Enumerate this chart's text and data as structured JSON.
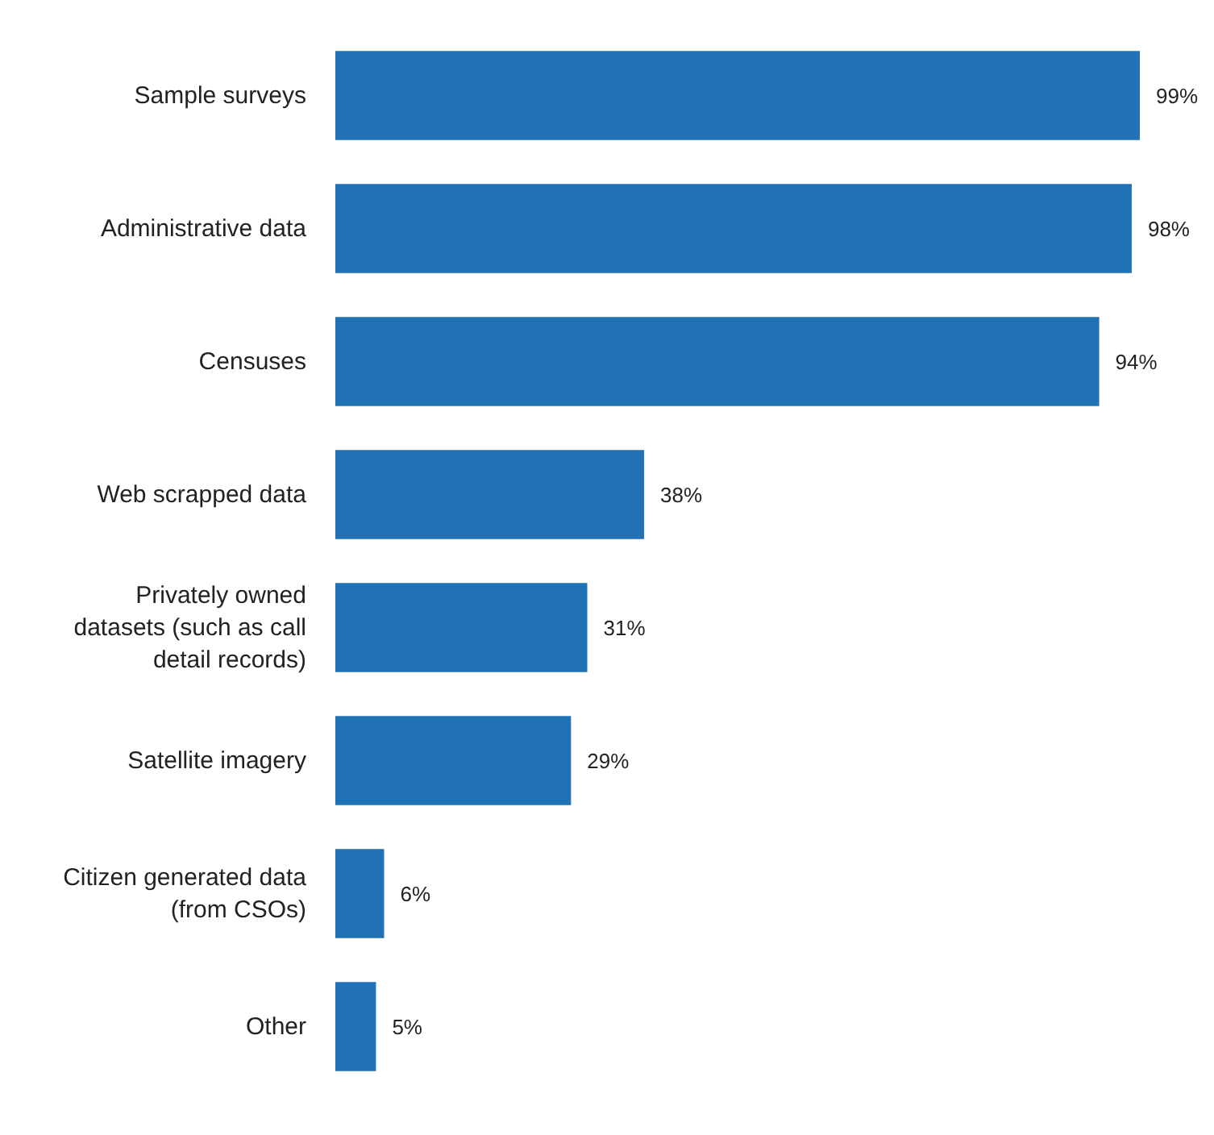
{
  "chart_data": {
    "type": "bar",
    "orientation": "horizontal",
    "categories": [
      "Sample surveys",
      "Administrative data",
      "Censuses",
      "Web scrapped data",
      "Privately owned\ndatasets (such as call\ndetail records)",
      "Satellite imagery",
      "Citizen generated data\n(from CSOs)",
      "Other"
    ],
    "values": [
      99,
      98,
      94,
      38,
      31,
      29,
      6,
      5
    ],
    "value_labels": [
      "99%",
      "98%",
      "94%",
      "38%",
      "31%",
      "29%",
      "6%",
      "5%"
    ],
    "color": "#2171b5"
  }
}
